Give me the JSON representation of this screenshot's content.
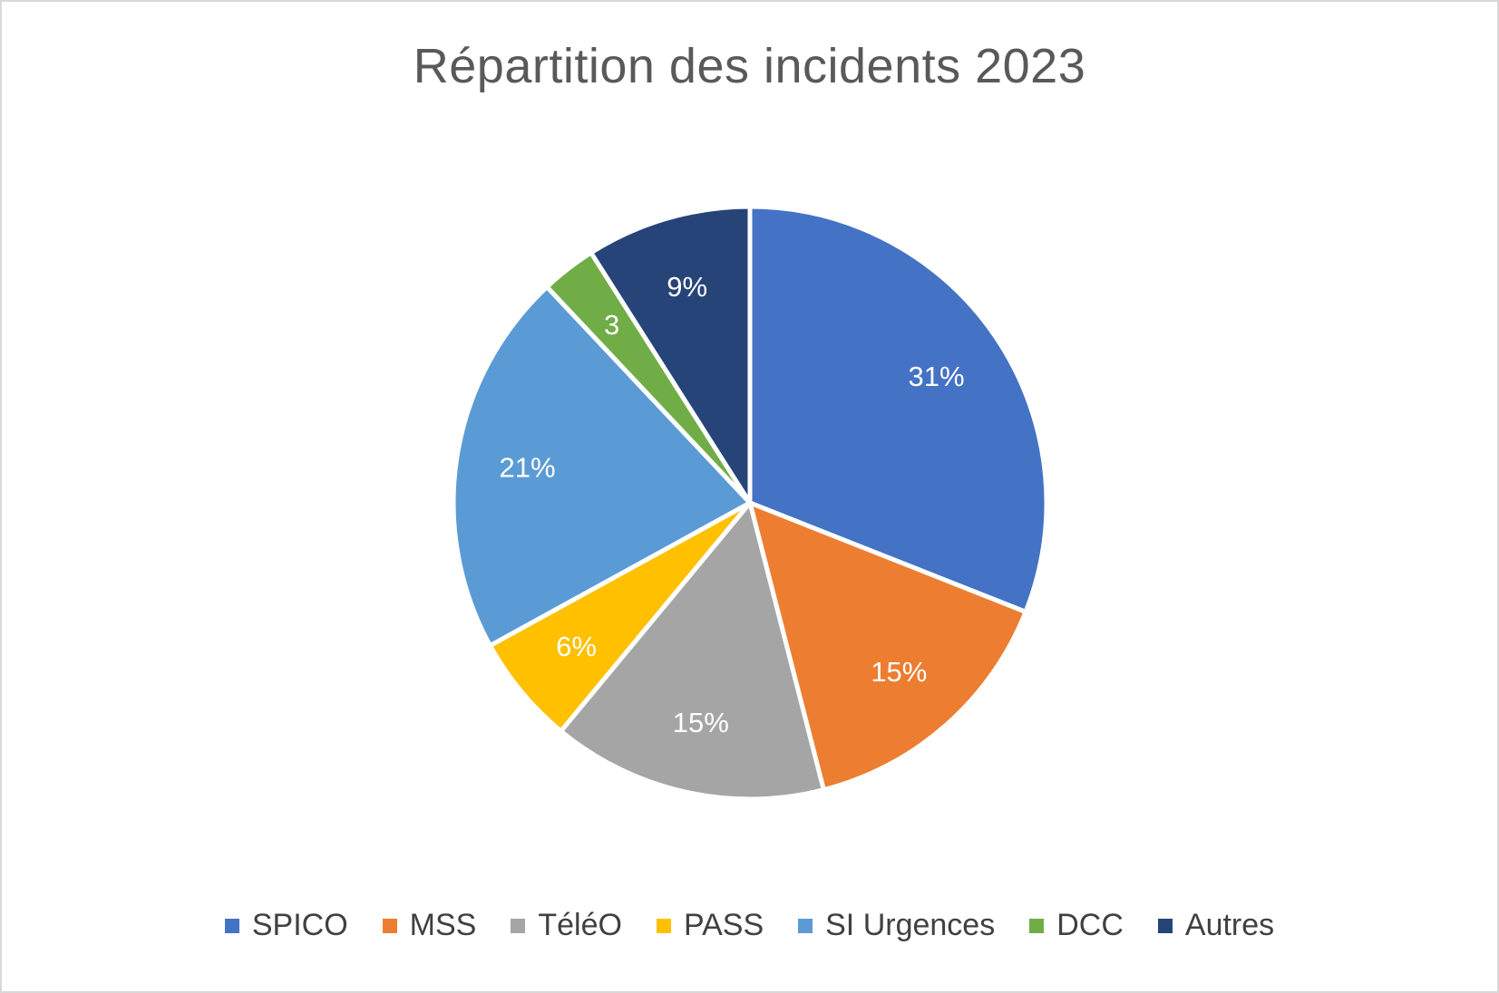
{
  "chart_data": {
    "type": "pie",
    "title": "Répartition des incidents 2023",
    "categories": [
      "SPICO",
      "MSS",
      "TéléO",
      "PASS",
      "SI Urgences",
      "DCC",
      "Autres"
    ],
    "values": [
      31,
      15,
      15,
      6,
      21,
      3,
      9
    ],
    "labels": [
      "31%",
      "15%",
      "15%",
      "6%",
      "21%",
      "3",
      "9%"
    ],
    "colors": [
      "#4472C4",
      "#ED7D31",
      "#A5A5A5",
      "#FFC000",
      "#5B9BD5",
      "#70AD47",
      "#264478"
    ],
    "legend_position": "bottom",
    "start_angle_deg": 0,
    "direction": "clockwise"
  }
}
